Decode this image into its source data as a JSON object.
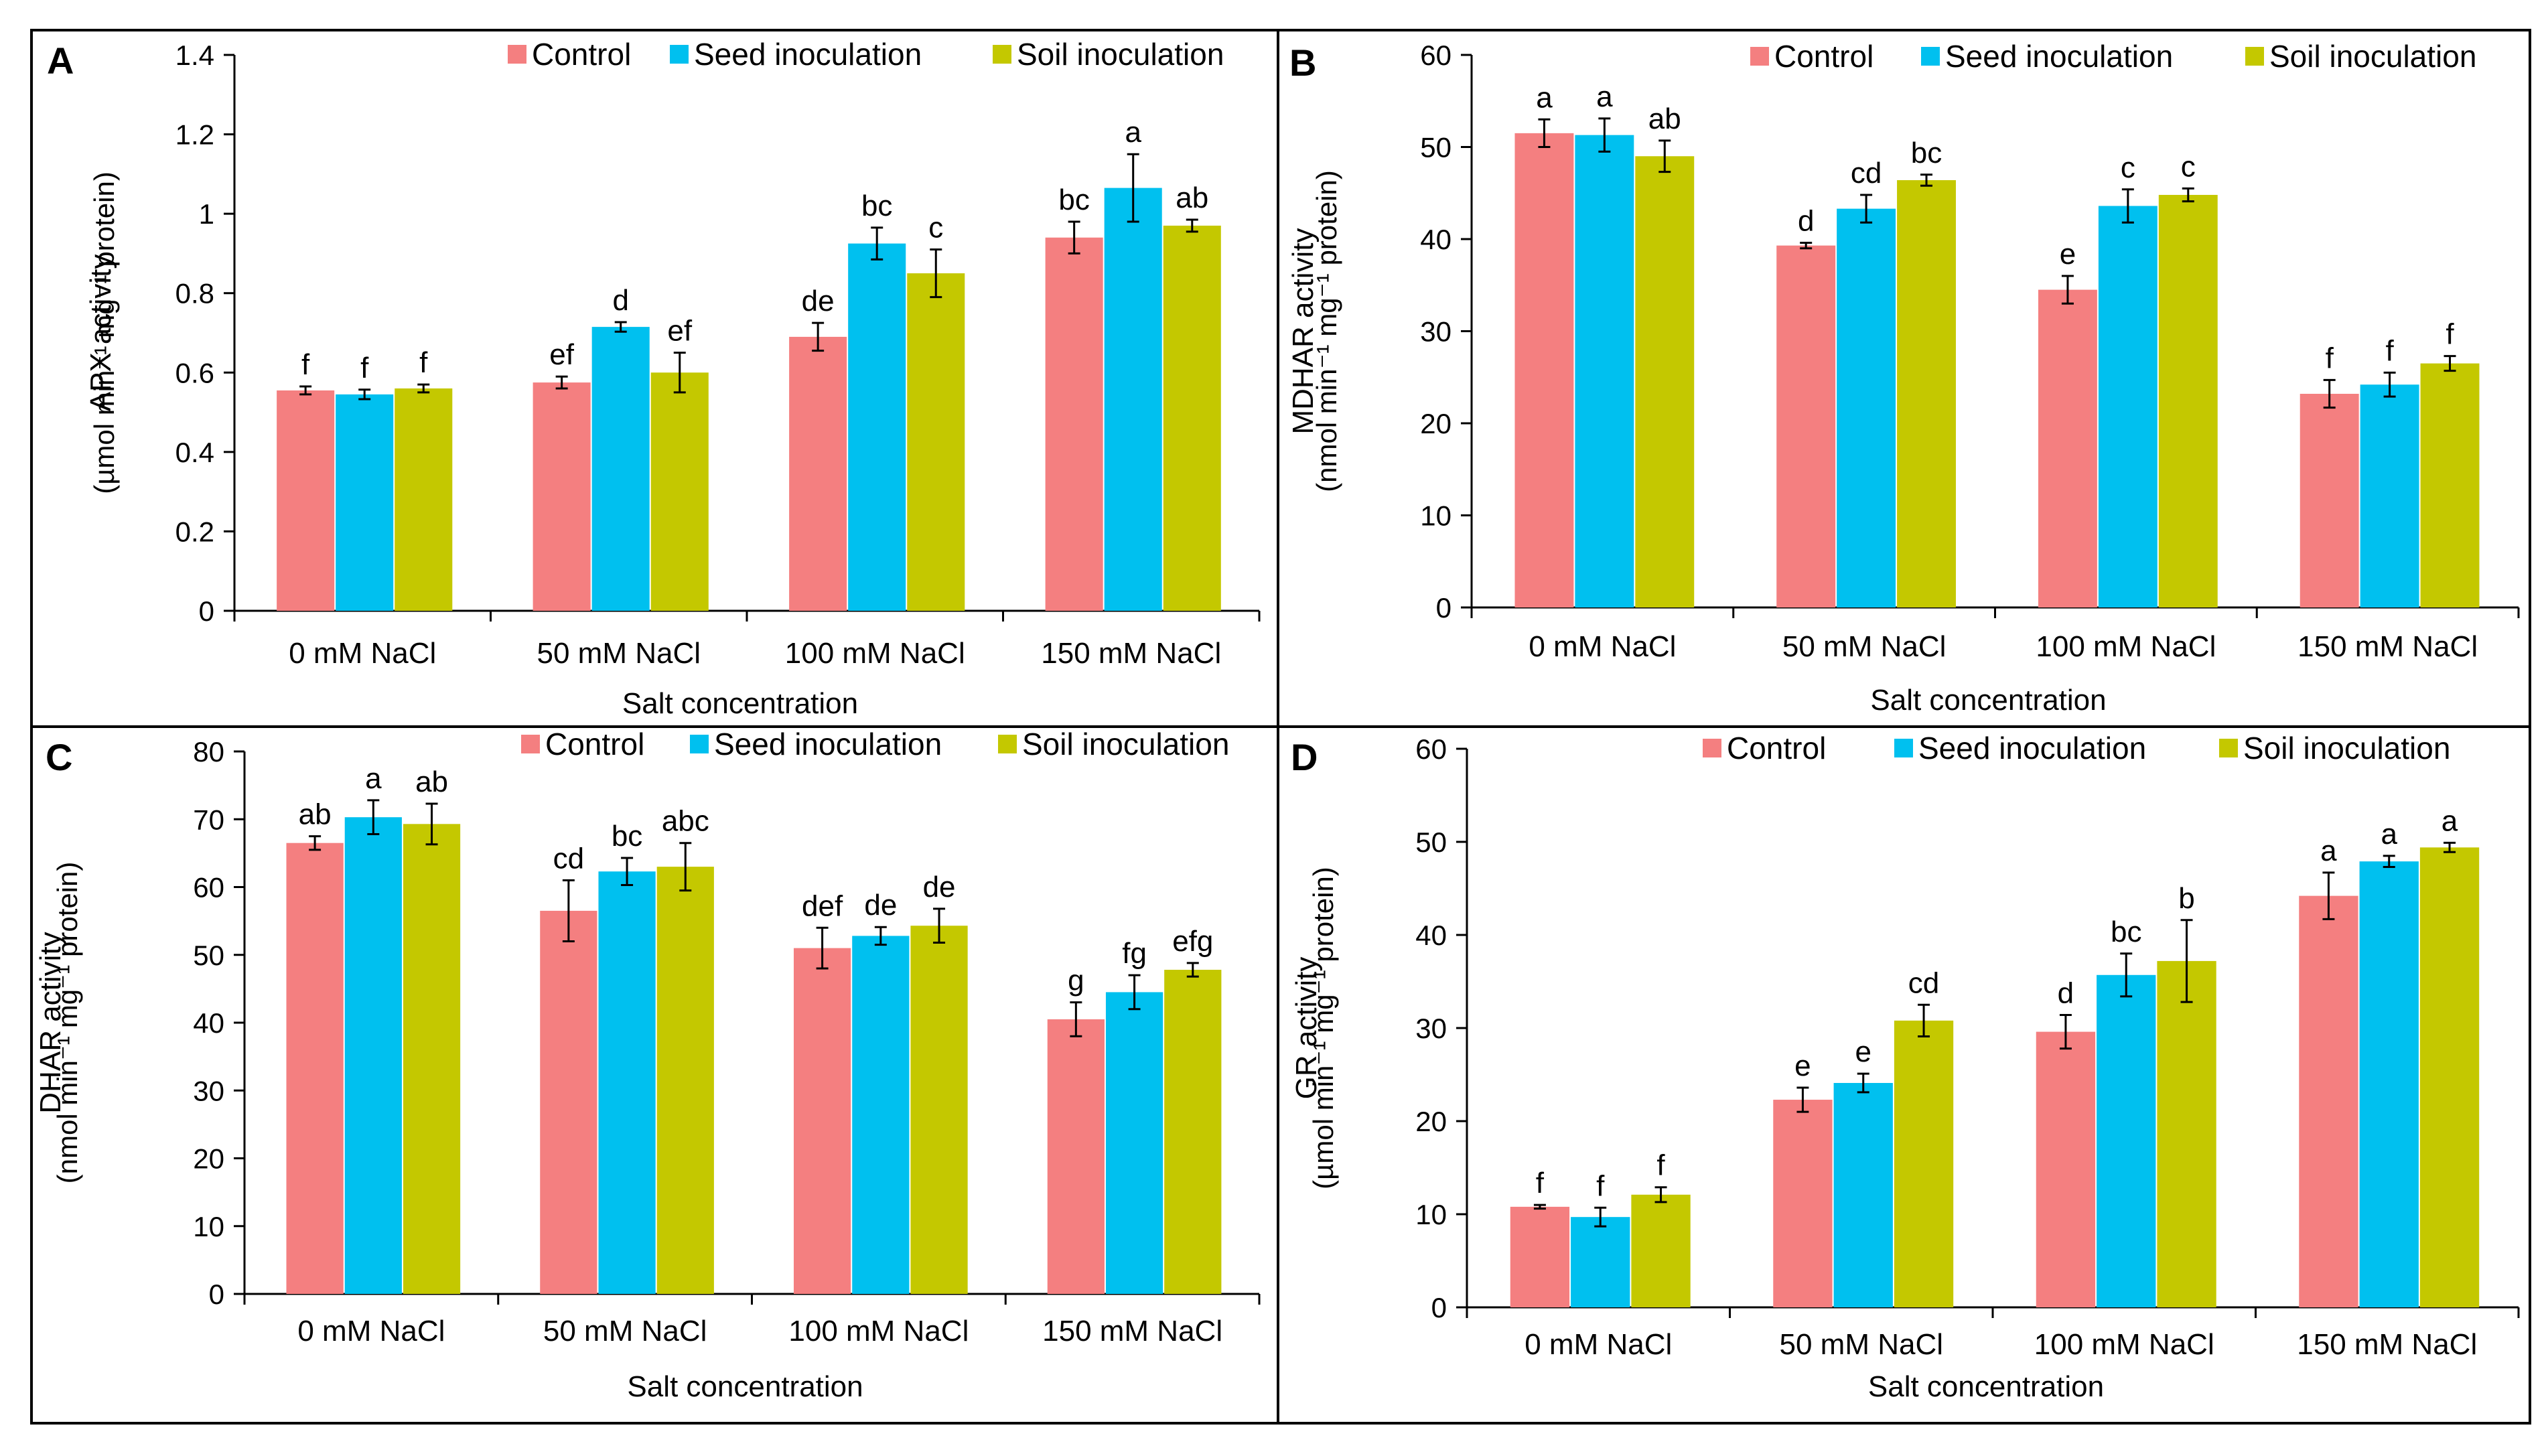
{
  "colors": {
    "control": "#f47f80",
    "seed": "#00c0ef",
    "soil": "#c4c800",
    "axis": "#000000",
    "frame": "#000000",
    "errorbar": "#000000"
  },
  "chart_data": [
    {
      "panel": "A",
      "type": "bar",
      "categories": [
        "0 mM NaCl",
        "50 mM NaCl",
        "100 mM NaCl",
        "150 mM NaCl"
      ],
      "xlabel": "Salt concentration",
      "ylabel_line1": "APX activity",
      "ylabel_line2": "(µmol min⁻¹ mg⁻¹ protein)",
      "ylim": [
        0,
        1.4
      ],
      "yticks": [
        "0",
        "0.2",
        "0.4",
        "0.6",
        "0.8",
        "1",
        "1.2",
        "1.4"
      ],
      "legend": [
        "Control",
        "Seed inoculation",
        "Soil inoculation"
      ],
      "legend_position": "top-right",
      "series": [
        {
          "name": "Control",
          "values": [
            0.555,
            0.575,
            0.69,
            0.94
          ],
          "errors": [
            0.01,
            0.015,
            0.035,
            0.04
          ],
          "letters": [
            "f",
            "ef",
            "de",
            "bc"
          ]
        },
        {
          "name": "Seed inoculation",
          "values": [
            0.545,
            0.715,
            0.925,
            1.065
          ],
          "errors": [
            0.012,
            0.012,
            0.04,
            0.085
          ],
          "letters": [
            "f",
            "d",
            "bc",
            "a"
          ]
        },
        {
          "name": "Soil inoculation",
          "values": [
            0.56,
            0.6,
            0.85,
            0.97
          ],
          "errors": [
            0.01,
            0.05,
            0.06,
            0.015
          ],
          "letters": [
            "f",
            "ef",
            "c",
            "ab"
          ]
        }
      ]
    },
    {
      "panel": "B",
      "type": "bar",
      "categories": [
        "0 mM NaCl",
        "50 mM NaCl",
        "100 mM NaCl",
        "150 mM NaCl"
      ],
      "xlabel": "Salt concentration",
      "ylabel_line1": "MDHAR activity",
      "ylabel_line2": "(nmol min⁻¹ mg⁻¹ protein)",
      "ylim": [
        0,
        60
      ],
      "yticks": [
        "0",
        "10",
        "20",
        "30",
        "40",
        "50",
        "60"
      ],
      "legend": [
        "Control",
        "Seed inoculation",
        "Soil inoculation"
      ],
      "legend_position": "top-right",
      "series": [
        {
          "name": "Control",
          "values": [
            51.5,
            39.3,
            34.5,
            23.2
          ],
          "errors": [
            1.5,
            0.3,
            1.5,
            1.5
          ],
          "letters": [
            "a",
            "d",
            "e",
            "f"
          ]
        },
        {
          "name": "Seed inoculation",
          "values": [
            51.3,
            43.3,
            43.6,
            24.2
          ],
          "errors": [
            1.8,
            1.5,
            1.8,
            1.3
          ],
          "letters": [
            "a",
            "cd",
            "c",
            "f"
          ]
        },
        {
          "name": "Soil inoculation",
          "values": [
            49.0,
            46.4,
            44.8,
            26.5
          ],
          "errors": [
            1.7,
            0.6,
            0.7,
            0.8
          ],
          "letters": [
            "ab",
            "bc",
            "c",
            "f"
          ]
        }
      ]
    },
    {
      "panel": "C",
      "type": "bar",
      "categories": [
        "0 mM NaCl",
        "50 mM NaCl",
        "100 mM NaCl",
        "150 mM NaCl"
      ],
      "xlabel": "Salt concentration",
      "ylabel_line1": "DHAR activity",
      "ylabel_line2": "(nmol min⁻¹ mg⁻¹ protein)",
      "ylim": [
        0,
        80
      ],
      "yticks": [
        "0",
        "10",
        "20",
        "30",
        "40",
        "50",
        "60",
        "70",
        "80"
      ],
      "legend": [
        "Control",
        "Seed inoculation",
        "Soil inoculation"
      ],
      "legend_position": "top-right",
      "series": [
        {
          "name": "Control",
          "values": [
            66.5,
            56.5,
            51.0,
            40.5
          ],
          "errors": [
            1.0,
            4.5,
            3.0,
            2.5
          ],
          "letters": [
            "ab",
            "cd",
            "def",
            "g"
          ]
        },
        {
          "name": "Seed inoculation",
          "values": [
            70.3,
            62.3,
            52.8,
            44.5
          ],
          "errors": [
            2.5,
            2.0,
            1.3,
            2.5
          ],
          "letters": [
            "a",
            "bc",
            "de",
            "fg"
          ]
        },
        {
          "name": "Soil inoculation",
          "values": [
            69.3,
            63.0,
            54.3,
            47.8
          ],
          "errors": [
            3.0,
            3.5,
            2.5,
            1.0
          ],
          "letters": [
            "ab",
            "abc",
            "de",
            "efg"
          ]
        }
      ]
    },
    {
      "panel": "D",
      "type": "bar",
      "categories": [
        "0 mM NaCl",
        "50 mM NaCl",
        "100 mM NaCl",
        "150 mM NaCl"
      ],
      "xlabel": "Salt concentration",
      "ylabel_line1": "GR activity",
      "ylabel_line2": "(µmol min⁻¹ mg⁻¹ protein)",
      "ylim": [
        0,
        60
      ],
      "yticks": [
        "0",
        "10",
        "20",
        "30",
        "40",
        "50",
        "60"
      ],
      "legend": [
        "Control",
        "Seed inoculation",
        "Soil inoculation"
      ],
      "legend_position": "top-right",
      "series": [
        {
          "name": "Control",
          "values": [
            10.8,
            22.3,
            29.6,
            44.2
          ],
          "errors": [
            0.2,
            1.3,
            1.8,
            2.5
          ],
          "letters": [
            "f",
            "e",
            "d",
            "a"
          ]
        },
        {
          "name": "Seed inoculation",
          "values": [
            9.7,
            24.1,
            35.7,
            47.9
          ],
          "errors": [
            1.0,
            1.0,
            2.3,
            0.6
          ],
          "letters": [
            "f",
            "e",
            "bc",
            "a"
          ]
        },
        {
          "name": "Soil inoculation",
          "values": [
            12.1,
            30.8,
            37.2,
            49.4
          ],
          "errors": [
            0.8,
            1.7,
            4.4,
            0.5
          ],
          "letters": [
            "f",
            "cd",
            "b",
            "a"
          ]
        }
      ]
    }
  ]
}
